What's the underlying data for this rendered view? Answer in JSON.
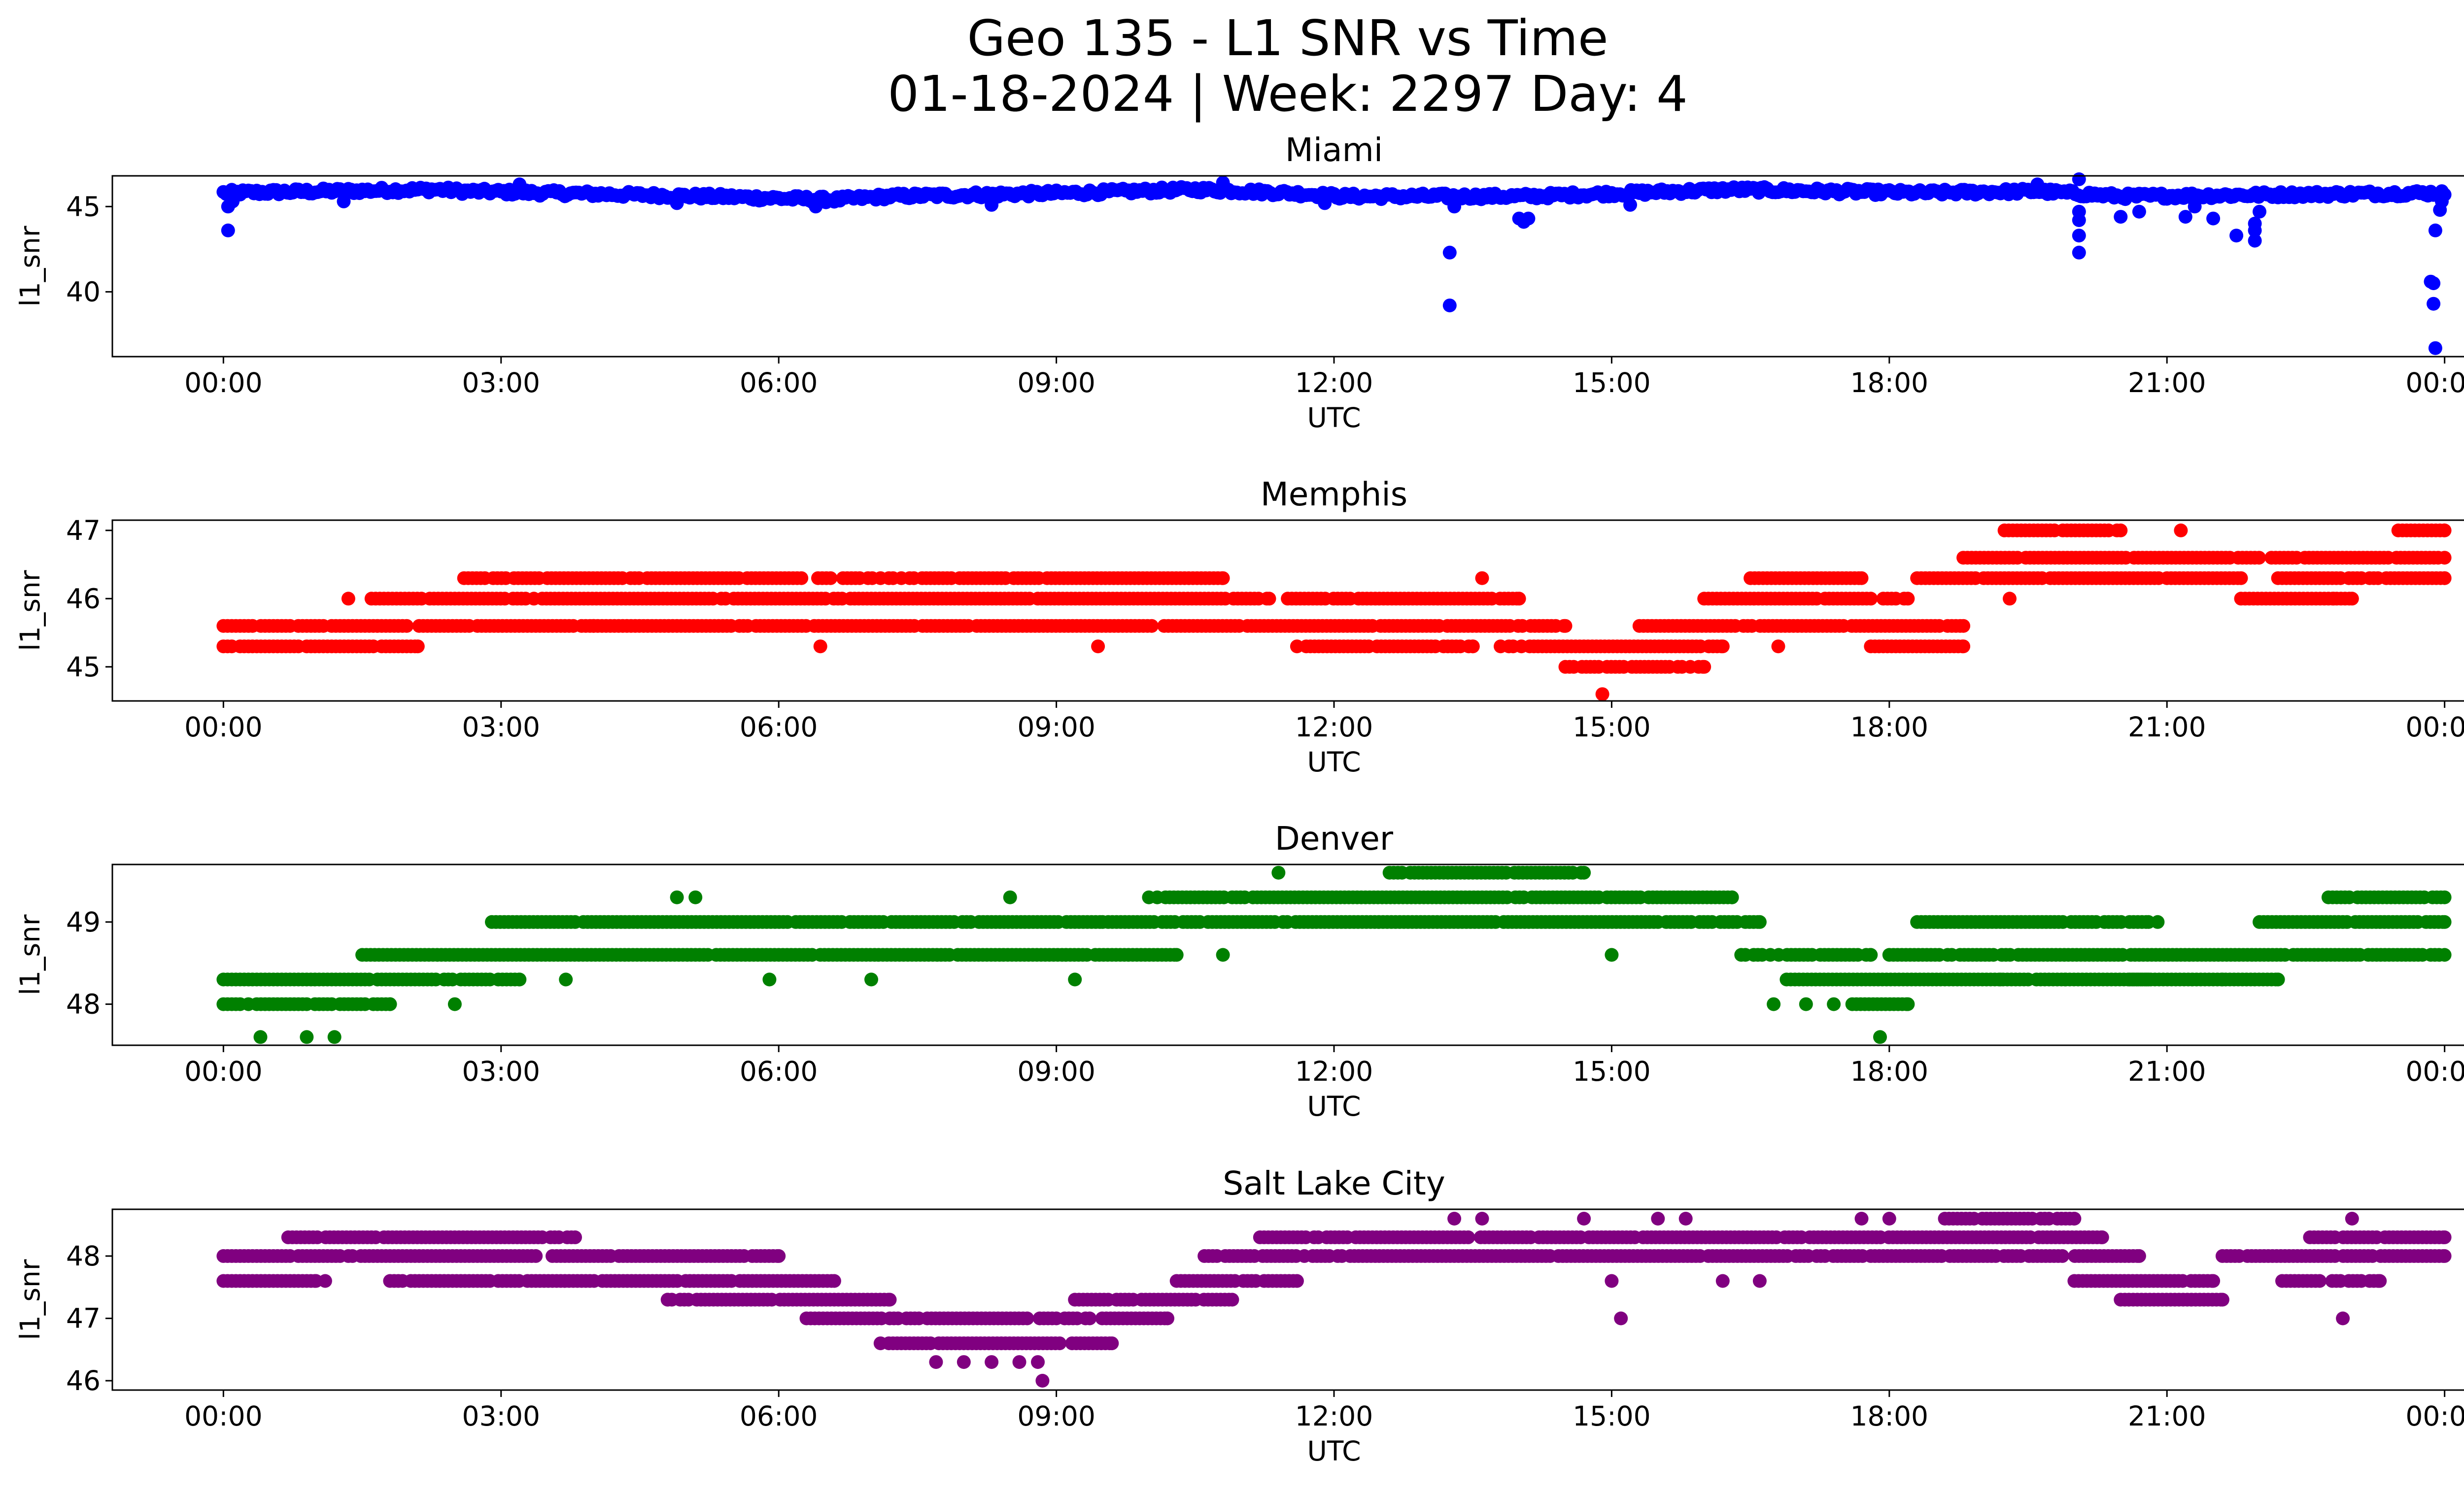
{
  "figure": {
    "title_line1": "Geo 135 - L1 SNR vs Time",
    "title_line2": "01-18-2024 | Week: 2297 Day: 4"
  },
  "chart_data": [
    {
      "type": "scatter",
      "title": "Miami",
      "xlabel": "UTC",
      "ylabel": "l1_snr",
      "color": "#0000ff",
      "xlim_hours": [
        -1.2,
        25.2
      ],
      "ylim": [
        36.2,
        46.8
      ],
      "yticks": [
        40,
        45
      ],
      "xtick_labels": [
        "00:00",
        "03:00",
        "06:00",
        "09:00",
        "12:00",
        "15:00",
        "18:00",
        "21:00",
        "00:00"
      ],
      "baseline": [
        [
          0,
          45.8
        ],
        [
          2.3,
          46.0
        ],
        [
          2.6,
          45.9
        ],
        [
          5.2,
          45.6
        ],
        [
          6.6,
          45.4
        ],
        [
          7.2,
          45.6
        ],
        [
          9.2,
          45.8
        ],
        [
          10.5,
          46.0
        ],
        [
          11.5,
          45.8
        ],
        [
          12.1,
          45.6
        ],
        [
          13.5,
          45.6
        ],
        [
          14.1,
          45.6
        ],
        [
          15.2,
          45.8
        ],
        [
          16.3,
          46.0
        ],
        [
          18.3,
          45.8
        ],
        [
          19.6,
          45.9
        ],
        [
          20.5,
          45.6
        ],
        [
          24,
          45.8
        ]
      ],
      "baseline_spread": 0.35,
      "outliers": [
        [
          0.05,
          43.6
        ],
        [
          0.05,
          45.0
        ],
        [
          0.1,
          45.3
        ],
        [
          1.3,
          45.3
        ],
        [
          3.2,
          46.3
        ],
        [
          4.9,
          45.2
        ],
        [
          6.4,
          45.0
        ],
        [
          8.3,
          45.1
        ],
        [
          10.8,
          46.4
        ],
        [
          11.9,
          45.2
        ],
        [
          13.25,
          42.3
        ],
        [
          13.25,
          39.2
        ],
        [
          13.3,
          45.0
        ],
        [
          14.0,
          44.3
        ],
        [
          14.05,
          44.1
        ],
        [
          14.1,
          44.3
        ],
        [
          15.2,
          45.1
        ],
        [
          19.6,
          46.3
        ],
        [
          20.05,
          46.6
        ],
        [
          20.05,
          44.2
        ],
        [
          20.05,
          44.7
        ],
        [
          20.05,
          43.3
        ],
        [
          20.05,
          42.3
        ],
        [
          20.5,
          44.4
        ],
        [
          20.7,
          44.7
        ],
        [
          21.2,
          44.4
        ],
        [
          21.3,
          45.0
        ],
        [
          21.5,
          44.3
        ],
        [
          21.75,
          43.3
        ],
        [
          21.95,
          43.0
        ],
        [
          21.95,
          43.6
        ],
        [
          21.95,
          44.0
        ],
        [
          22.0,
          44.7
        ],
        [
          23.85,
          40.6
        ],
        [
          23.88,
          40.5
        ],
        [
          23.88,
          39.3
        ],
        [
          23.9,
          36.7
        ],
        [
          23.9,
          43.6
        ],
        [
          23.95,
          44.8
        ],
        [
          23.97,
          45.3
        ],
        [
          24.0,
          45.7
        ]
      ]
    },
    {
      "type": "scatter",
      "title": "Memphis",
      "xlabel": "UTC",
      "ylabel": "l1_snr",
      "color": "#ff0000",
      "xlim_hours": [
        -1.2,
        25.2
      ],
      "ylim": [
        44.5,
        47.15
      ],
      "yticks": [
        45,
        46,
        47
      ],
      "xtick_labels": [
        "00:00",
        "03:00",
        "06:00",
        "09:00",
        "12:00",
        "15:00",
        "18:00",
        "21:00",
        "00:00"
      ],
      "levels": [
        45.0,
        45.3,
        45.6,
        46.0,
        46.3,
        46.6,
        47.0
      ],
      "bands": [
        [
          0,
          2.1,
          45.3
        ],
        [
          0,
          4.0,
          45.6
        ],
        [
          1.6,
          11.3,
          46.0
        ],
        [
          2.6,
          10.8,
          46.3
        ],
        [
          4.0,
          14.5,
          45.6
        ],
        [
          11.5,
          14.0,
          46.0
        ],
        [
          11.7,
          13.5,
          45.3
        ],
        [
          13.8,
          16.2,
          45.3
        ],
        [
          14.5,
          16.0,
          45.0
        ],
        [
          15.3,
          18.8,
          45.6
        ],
        [
          16.0,
          18.2,
          46.0
        ],
        [
          16.5,
          17.7,
          46.3
        ],
        [
          17.8,
          18.8,
          45.3
        ],
        [
          18.3,
          21.8,
          46.3
        ],
        [
          18.8,
          24.0,
          46.6
        ],
        [
          19.2,
          20.5,
          47.0
        ],
        [
          21.8,
          23.0,
          46.0
        ],
        [
          22.2,
          24.0,
          46.3
        ],
        [
          23.5,
          24.0,
          47.0
        ]
      ],
      "outliers": [
        [
          1.35,
          46.0
        ],
        [
          6.45,
          45.3
        ],
        [
          9.45,
          45.3
        ],
        [
          11.6,
          45.3
        ],
        [
          14.9,
          44.6
        ],
        [
          16.8,
          45.3
        ],
        [
          19.3,
          46.0
        ],
        [
          21.15,
          47.0
        ],
        [
          22.8,
          46.0
        ],
        [
          13.6,
          46.3
        ]
      ]
    },
    {
      "type": "scatter",
      "title": "Denver",
      "xlabel": "UTC",
      "ylabel": "l1_snr",
      "color": "#008000",
      "xlim_hours": [
        -1.2,
        25.2
      ],
      "ylim": [
        47.5,
        49.7
      ],
      "yticks": [
        48,
        49
      ],
      "xtick_labels": [
        "00:00",
        "03:00",
        "06:00",
        "09:00",
        "12:00",
        "15:00",
        "18:00",
        "21:00",
        "00:00"
      ],
      "levels": [
        47.6,
        48.0,
        48.3,
        48.6,
        49.0,
        49.3,
        49.6
      ],
      "bands": [
        [
          0,
          1.8,
          48.0
        ],
        [
          0,
          3.2,
          48.3
        ],
        [
          1.5,
          10.3,
          48.6
        ],
        [
          2.9,
          16.6,
          49.0
        ],
        [
          10.0,
          16.3,
          49.3
        ],
        [
          12.6,
          14.7,
          49.6
        ],
        [
          16.4,
          17.8,
          48.6
        ],
        [
          16.8,
          20.8,
          48.3
        ],
        [
          17.6,
          18.2,
          48.0
        ],
        [
          18.0,
          24.0,
          48.6
        ],
        [
          18.3,
          20.8,
          49.0
        ],
        [
          20.6,
          22.2,
          48.3
        ],
        [
          22.0,
          24.0,
          49.0
        ],
        [
          22.7,
          24.0,
          49.3
        ]
      ],
      "outliers": [
        [
          0.4,
          47.6
        ],
        [
          0.9,
          47.6
        ],
        [
          1.2,
          47.6
        ],
        [
          2.5,
          48.0
        ],
        [
          3.7,
          48.3
        ],
        [
          4.9,
          49.3
        ],
        [
          5.1,
          49.3
        ],
        [
          5.9,
          48.3
        ],
        [
          7.0,
          48.3
        ],
        [
          8.5,
          49.3
        ],
        [
          9.2,
          48.3
        ],
        [
          9.5,
          49.0
        ],
        [
          10.8,
          48.6
        ],
        [
          11.4,
          49.6
        ],
        [
          15.0,
          48.6
        ],
        [
          16.75,
          48.0
        ],
        [
          17.1,
          48.0
        ],
        [
          17.4,
          48.0
        ],
        [
          17.9,
          47.6
        ],
        [
          19.2,
          48.3
        ],
        [
          19.9,
          48.3
        ],
        [
          20.9,
          49.0
        ],
        [
          21.6,
          48.3
        ]
      ]
    },
    {
      "type": "scatter",
      "title": "Salt Lake City",
      "xlabel": "UTC",
      "ylabel": "l1_snr",
      "color": "#800080",
      "xlim_hours": [
        -1.2,
        25.2
      ],
      "ylim": [
        45.85,
        48.75
      ],
      "yticks": [
        46,
        47,
        48
      ],
      "xtick_labels": [
        "00:00",
        "03:00",
        "06:00",
        "09:00",
        "12:00",
        "15:00",
        "18:00",
        "21:00",
        "00:00"
      ],
      "levels": [
        46.0,
        46.3,
        46.6,
        47.0,
        47.3,
        47.6,
        48.0,
        48.3,
        48.6
      ],
      "bands": [
        [
          0,
          6.0,
          48.0
        ],
        [
          0,
          1.0,
          47.6
        ],
        [
          0.7,
          3.8,
          48.3
        ],
        [
          1.8,
          6.6,
          47.6
        ],
        [
          4.8,
          7.2,
          47.3
        ],
        [
          6.3,
          10.2,
          47.0
        ],
        [
          7.1,
          9.6,
          46.6
        ],
        [
          9.2,
          10.9,
          47.3
        ],
        [
          10.3,
          11.6,
          47.6
        ],
        [
          10.6,
          20.7,
          48.0
        ],
        [
          11.2,
          20.3,
          48.3
        ],
        [
          18.6,
          20.0,
          48.6
        ],
        [
          20.0,
          21.5,
          47.6
        ],
        [
          20.5,
          21.6,
          47.3
        ],
        [
          21.6,
          24.0,
          48.0
        ],
        [
          22.2,
          23.3,
          47.6
        ],
        [
          22.5,
          24.0,
          48.3
        ]
      ],
      "outliers": [
        [
          1.1,
          47.6
        ],
        [
          4.8,
          47.3
        ],
        [
          7.7,
          46.3
        ],
        [
          8.0,
          46.3
        ],
        [
          8.3,
          46.3
        ],
        [
          8.6,
          46.3
        ],
        [
          8.8,
          46.3
        ],
        [
          8.85,
          46.0
        ],
        [
          13.3,
          48.6
        ],
        [
          13.6,
          48.6
        ],
        [
          14.7,
          48.6
        ],
        [
          15.0,
          47.6
        ],
        [
          15.1,
          47.0
        ],
        [
          15.5,
          48.6
        ],
        [
          15.8,
          48.6
        ],
        [
          16.2,
          47.6
        ],
        [
          16.6,
          47.6
        ],
        [
          17.7,
          48.6
        ],
        [
          18.0,
          48.6
        ],
        [
          22.9,
          47.0
        ],
        [
          23.0,
          48.6
        ]
      ]
    }
  ]
}
